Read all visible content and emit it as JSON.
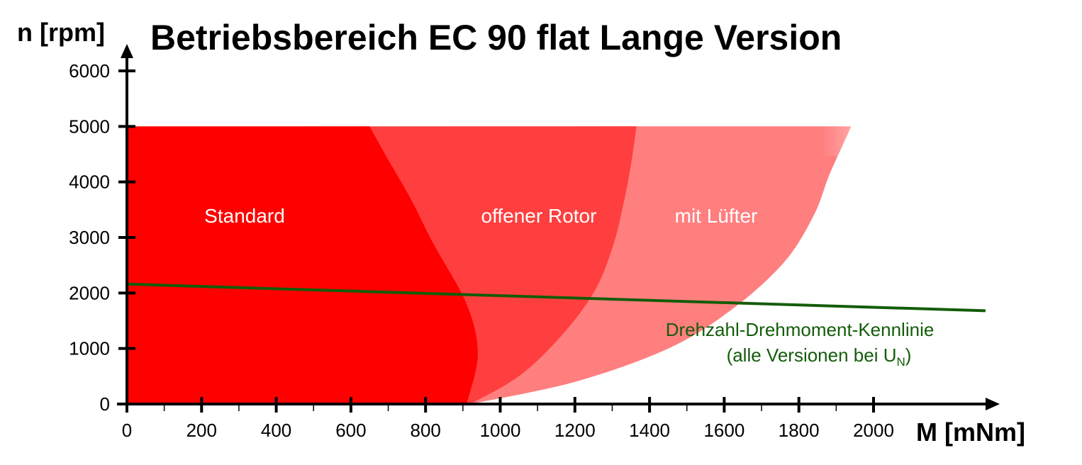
{
  "chart_data": {
    "type": "area",
    "title": "Betriebsbereich EC 90 flat Lange Version",
    "xlabel": "M [mNm]",
    "ylabel": "n [rpm]",
    "xlim": [
      0,
      2300
    ],
    "ylim": [
      0,
      6300
    ],
    "x_ticks": [
      0,
      200,
      400,
      600,
      800,
      1000,
      1200,
      1400,
      1600,
      1800,
      2000
    ],
    "y_ticks": [
      0,
      1000,
      2000,
      3000,
      4000,
      5000,
      6000
    ],
    "x_minor_step": 100,
    "grid": false,
    "speed_limit": 5000,
    "regions": [
      {
        "name": "mit Lüfter",
        "color": "#ff7f7f",
        "boundary": [
          [
            920,
            0
          ],
          [
            1200,
            400
          ],
          [
            1450,
            1000
          ],
          [
            1620,
            1700
          ],
          [
            1760,
            2550
          ],
          [
            1840,
            3400
          ],
          [
            1880,
            4100
          ],
          [
            1920,
            4700
          ],
          [
            1940,
            5000
          ]
        ]
      },
      {
        "name": "offener Rotor",
        "color": "#ff3f3f",
        "boundary": [
          [
            920,
            0
          ],
          [
            1050,
            500
          ],
          [
            1160,
            1200
          ],
          [
            1250,
            2000
          ],
          [
            1300,
            2800
          ],
          [
            1330,
            3600
          ],
          [
            1350,
            4300
          ],
          [
            1365,
            5000
          ]
        ]
      },
      {
        "name": "Standard",
        "color": "#ff0000",
        "boundary": [
          [
            910,
            0
          ],
          [
            940,
            900
          ],
          [
            910,
            1800
          ],
          [
            820,
            2900
          ],
          [
            760,
            3700
          ],
          [
            700,
            4400
          ],
          [
            650,
            5000
          ]
        ]
      }
    ],
    "series": [
      {
        "name": "Drehzahl-Drehmoment-Kennlinie",
        "color": "#145c0a",
        "type": "line",
        "x": [
          0,
          2300
        ],
        "y": [
          2160,
          1680
        ]
      }
    ],
    "annotations": {
      "characteristic_line1": "Drehzahl-Drehmoment-Kennlinie",
      "characteristic_line2_main": "(alle Versionen bei U",
      "characteristic_line2_sub": "N",
      "characteristic_line2_end": ")"
    }
  }
}
